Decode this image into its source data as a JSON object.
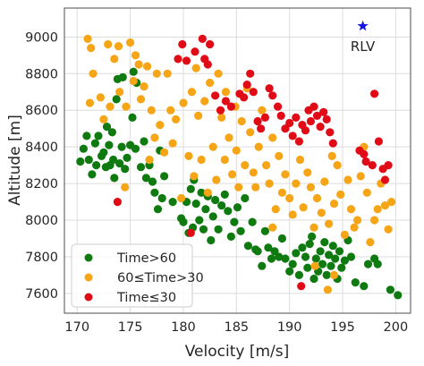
{
  "chart_data": {
    "type": "scatter",
    "xlabel": "Velocity [m/s]",
    "ylabel": "Altitude [m]",
    "xlim": [
      168.8,
      201.4
    ],
    "ylim": [
      7492,
      9158
    ],
    "xticks": [
      170,
      175,
      180,
      185,
      190,
      195,
      200
    ],
    "yticks": [
      7600,
      7800,
      8000,
      8200,
      8400,
      8600,
      8800,
      9000
    ],
    "grid": true,
    "legend_position": "lower-left",
    "colors": {
      "green": "#0f7a0f",
      "orange": "#f5a516",
      "red": "#e00b16",
      "star": "#1414e6"
    },
    "series": [
      {
        "name": "Time>60",
        "color": "#0f7a0f",
        "points": [
          [
            170.3,
            8320
          ],
          [
            170.6,
            8390
          ],
          [
            170.9,
            8460
          ],
          [
            171.1,
            8330
          ],
          [
            171.4,
            8250
          ],
          [
            171.7,
            8420
          ],
          [
            171.8,
            8300
          ],
          [
            172.0,
            8460
          ],
          [
            172.3,
            8350
          ],
          [
            172.5,
            8370
          ],
          [
            172.7,
            8290
          ],
          [
            172.8,
            8510
          ],
          [
            173.0,
            8410
          ],
          [
            173.1,
            8300
          ],
          [
            173.3,
            8480
          ],
          [
            173.4,
            8330
          ],
          [
            173.5,
            8230
          ],
          [
            173.7,
            8660
          ],
          [
            173.8,
            8770
          ],
          [
            174.0,
            8310
          ],
          [
            174.2,
            8400
          ],
          [
            174.3,
            8780
          ],
          [
            174.5,
            8280
          ],
          [
            174.7,
            8340
          ],
          [
            175.0,
            8410
          ],
          [
            175.2,
            8560
          ],
          [
            175.3,
            8810
          ],
          [
            175.5,
            8390
          ],
          [
            175.6,
            8750
          ],
          [
            176.0,
            8290
          ],
          [
            176.3,
            8430
          ],
          [
            176.5,
            8230
          ],
          [
            176.8,
            8300
          ],
          [
            177.1,
            8210
          ],
          [
            177.3,
            8150
          ],
          [
            177.6,
            8060
          ],
          [
            177.8,
            8380
          ],
          [
            178.0,
            8120
          ],
          [
            178.2,
            8240
          ],
          [
            179.0,
            8100
          ],
          [
            179.8,
            8010
          ],
          [
            180.0,
            7990
          ],
          [
            180.3,
            8100
          ],
          [
            180.5,
            7930
          ],
          [
            180.7,
            8170
          ],
          [
            180.9,
            7960
          ],
          [
            181.0,
            8220
          ],
          [
            181.2,
            8090
          ],
          [
            181.5,
            8000
          ],
          [
            181.7,
            8150
          ],
          [
            181.9,
            7950
          ],
          [
            182.1,
            8060
          ],
          [
            182.3,
            8130
          ],
          [
            182.6,
            7890
          ],
          [
            182.8,
            8020
          ],
          [
            183.0,
            8110
          ],
          [
            183.3,
            7950
          ],
          [
            183.6,
            8080
          ],
          [
            183.9,
            8140
          ],
          [
            184.2,
            8050
          ],
          [
            184.5,
            7910
          ],
          [
            184.8,
            7990
          ],
          [
            185.1,
            8070
          ],
          [
            185.4,
            7940
          ],
          [
            185.8,
            8120
          ],
          [
            186.1,
            7860
          ],
          [
            186.5,
            7990
          ],
          [
            186.8,
            7840
          ],
          [
            187.0,
            7830
          ],
          [
            187.4,
            7750
          ],
          [
            187.7,
            7940
          ],
          [
            188.0,
            7850
          ],
          [
            188.3,
            7790
          ],
          [
            188.6,
            7830
          ],
          [
            189.0,
            7800
          ],
          [
            189.3,
            7900
          ],
          [
            189.6,
            7790
          ],
          [
            190.0,
            7720
          ],
          [
            190.3,
            7760
          ],
          [
            190.6,
            7820
          ],
          [
            190.9,
            7700
          ],
          [
            191.2,
            7850
          ],
          [
            191.5,
            7800
          ],
          [
            191.7,
            7740
          ],
          [
            191.9,
            7870
          ],
          [
            192.1,
            7910
          ],
          [
            192.3,
            7680
          ],
          [
            192.5,
            7790
          ],
          [
            192.7,
            7720
          ],
          [
            192.9,
            7830
          ],
          [
            193.1,
            7760
          ],
          [
            193.3,
            7880
          ],
          [
            193.5,
            7700
          ],
          [
            193.7,
            7810
          ],
          [
            193.9,
            7750
          ],
          [
            194.1,
            7860
          ],
          [
            194.3,
            7790
          ],
          [
            194.5,
            7680
          ],
          [
            194.7,
            7830
          ],
          [
            194.9,
            7740
          ],
          [
            195.2,
            7780
          ],
          [
            195.5,
            7890
          ],
          [
            195.8,
            7800
          ],
          [
            196.2,
            7660
          ],
          [
            197.0,
            7640
          ],
          [
            197.4,
            7760
          ],
          [
            198.0,
            7790
          ],
          [
            198.3,
            7760
          ],
          [
            199.5,
            7620
          ],
          [
            200.2,
            7590
          ]
        ]
      },
      {
        "name": "60≤Time>30",
        "color": "#f5a516",
        "points": [
          [
            171.0,
            8990
          ],
          [
            171.3,
            8940
          ],
          [
            171.5,
            8800
          ],
          [
            171.2,
            8640
          ],
          [
            172.2,
            8670
          ],
          [
            172.5,
            8550
          ],
          [
            172.9,
            8960
          ],
          [
            173.1,
            8620
          ],
          [
            173.5,
            8880
          ],
          [
            173.9,
            8950
          ],
          [
            174.0,
            8700
          ],
          [
            174.5,
            8180
          ],
          [
            174.6,
            8620
          ],
          [
            175.0,
            8970
          ],
          [
            175.3,
            8760
          ],
          [
            175.5,
            8900
          ],
          [
            175.8,
            8850
          ],
          [
            176.0,
            8660
          ],
          [
            176.3,
            8730
          ],
          [
            176.6,
            8840
          ],
          [
            176.8,
            8330
          ],
          [
            177.0,
            8600
          ],
          [
            177.3,
            8450
          ],
          [
            177.5,
            8800
          ],
          [
            177.8,
            8520
          ],
          [
            178.2,
            8370
          ],
          [
            178.5,
            8800
          ],
          [
            178.8,
            8600
          ],
          [
            179.0,
            8420
          ],
          [
            179.3,
            8550
          ],
          [
            179.8,
            8120
          ],
          [
            180.0,
            8640
          ],
          [
            180.5,
            8350
          ],
          [
            180.8,
            8700
          ],
          [
            181.0,
            8240
          ],
          [
            181.2,
            8830
          ],
          [
            181.4,
            8570
          ],
          [
            181.7,
            8330
          ],
          [
            182.0,
            8650
          ],
          [
            182.3,
            8150
          ],
          [
            182.5,
            8750
          ],
          [
            182.8,
            8400
          ],
          [
            183.1,
            8220
          ],
          [
            183.3,
            8800
          ],
          [
            183.6,
            8560
          ],
          [
            183.9,
            8330
          ],
          [
            184.0,
            8700
          ],
          [
            184.3,
            8450
          ],
          [
            184.6,
            8250
          ],
          [
            184.9,
            8620
          ],
          [
            185.0,
            8380
          ],
          [
            185.2,
            8180
          ],
          [
            185.5,
            8540
          ],
          [
            185.8,
            8300
          ],
          [
            186.0,
            8720
          ],
          [
            186.3,
            8480
          ],
          [
            186.6,
            8260
          ],
          [
            186.8,
            8180
          ],
          [
            187.1,
            8400
          ],
          [
            187.4,
            8600
          ],
          [
            187.8,
            8300
          ],
          [
            188.1,
            8200
          ],
          [
            188.4,
            8450
          ],
          [
            188.7,
            8060
          ],
          [
            189.0,
            8350
          ],
          [
            189.3,
            8150
          ],
          [
            189.6,
            8250
          ],
          [
            190.0,
            8120
          ],
          [
            190.3,
            8030
          ],
          [
            190.6,
            8200
          ],
          [
            191.0,
            8330
          ],
          [
            191.3,
            8070
          ],
          [
            191.7,
            8260
          ],
          [
            192.0,
            8180
          ],
          [
            192.3,
            7960
          ],
          [
            192.6,
            8120
          ],
          [
            193.0,
            8040
          ],
          [
            193.3,
            8210
          ],
          [
            193.7,
            7980
          ],
          [
            194.0,
            8350
          ],
          [
            194.2,
            8090
          ],
          [
            194.5,
            8300
          ],
          [
            194.8,
            8140
          ],
          [
            195.2,
            7920
          ],
          [
            195.5,
            8220
          ],
          [
            195.8,
            8060
          ],
          [
            196.1,
            7960
          ],
          [
            196.4,
            8000
          ],
          [
            196.7,
            8240
          ],
          [
            197.0,
            8400
          ],
          [
            197.3,
            8150
          ],
          [
            197.6,
            7880
          ],
          [
            198.0,
            8000
          ],
          [
            198.3,
            8060
          ],
          [
            198.6,
            8200
          ],
          [
            199.0,
            8080
          ],
          [
            199.3,
            7950
          ],
          [
            199.6,
            8100
          ],
          [
            192.4,
            7750
          ],
          [
            193.6,
            7620
          ],
          [
            194.2,
            7700
          ],
          [
            188.4,
            7960
          ]
        ]
      },
      {
        "name": "Time≤30",
        "color": "#e00b16",
        "points": [
          [
            173.8,
            8100
          ],
          [
            179.5,
            8880
          ],
          [
            179.9,
            8960
          ],
          [
            180.3,
            8870
          ],
          [
            180.7,
            7930
          ],
          [
            181.1,
            8920
          ],
          [
            181.8,
            8990
          ],
          [
            182.0,
            8880
          ],
          [
            182.3,
            8850
          ],
          [
            182.5,
            8960
          ],
          [
            183.0,
            8680
          ],
          [
            183.5,
            8600
          ],
          [
            184.0,
            8650
          ],
          [
            184.5,
            8620
          ],
          [
            185.3,
            8690
          ],
          [
            185.7,
            8670
          ],
          [
            186.0,
            8740
          ],
          [
            186.3,
            8800
          ],
          [
            186.6,
            8700
          ],
          [
            187.0,
            8540
          ],
          [
            187.3,
            8500
          ],
          [
            187.7,
            8560
          ],
          [
            188.1,
            8720
          ],
          [
            188.4,
            8680
          ],
          [
            188.9,
            8620
          ],
          [
            189.2,
            8570
          ],
          [
            189.6,
            8500
          ],
          [
            190.0,
            8530
          ],
          [
            190.3,
            8460
          ],
          [
            190.6,
            8560
          ],
          [
            190.9,
            8430
          ],
          [
            191.2,
            8520
          ],
          [
            191.5,
            8490
          ],
          [
            191.8,
            8600
          ],
          [
            192.0,
            8540
          ],
          [
            192.3,
            8620
          ],
          [
            192.6,
            8570
          ],
          [
            192.9,
            8510
          ],
          [
            193.2,
            8590
          ],
          [
            193.5,
            8550
          ],
          [
            193.8,
            8480
          ],
          [
            194.1,
            8420
          ],
          [
            196.6,
            8380
          ],
          [
            197.0,
            8360
          ],
          [
            197.2,
            8320
          ],
          [
            197.8,
            8300
          ],
          [
            198.0,
            8690
          ],
          [
            198.4,
            8430
          ],
          [
            198.8,
            8280
          ],
          [
            199.0,
            8220
          ],
          [
            199.3,
            8300
          ],
          [
            191.1,
            7640
          ]
        ]
      }
    ],
    "annotations": [
      {
        "label": "RLV",
        "x": 196.9,
        "y": 9060,
        "marker": "star",
        "color": "#1414e6"
      }
    ]
  }
}
